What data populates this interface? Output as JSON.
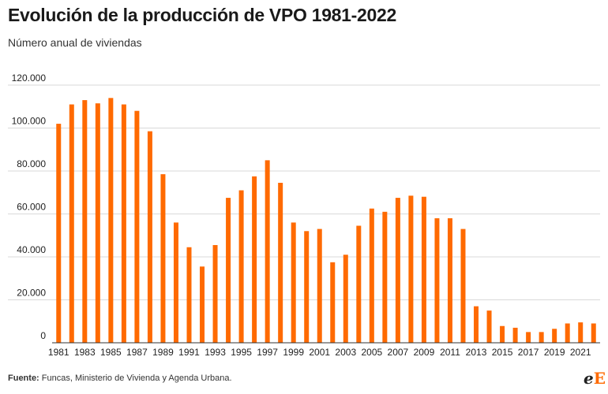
{
  "header": {
    "title": "Evolución de la producción de VPO 1981-2022",
    "subtitle": "Número anual de viviendas"
  },
  "footer": {
    "source_label": "Fuente:",
    "source_text": " Funcas, Ministerio de Vivienda y Agenda Urbana.",
    "logo_part1": "e",
    "logo_part2": "E"
  },
  "colors": {
    "bar": "#ff6a00",
    "grid": "#d9d9d9",
    "axis": "#333333",
    "text": "#222222"
  },
  "chart_data": {
    "type": "bar",
    "title": "Evolución de la producción de VPO 1981-2022",
    "subtitle": "Número anual de viviendas",
    "xlabel": "",
    "ylabel": "",
    "ylim": [
      0,
      120000
    ],
    "yticks": [
      0,
      20000,
      40000,
      60000,
      80000,
      100000,
      120000
    ],
    "ytick_labels": [
      "0",
      "20.000",
      "40.000",
      "60.000",
      "80.000",
      "100.000",
      "120.000"
    ],
    "xtick_labels": [
      "1981",
      "1983",
      "1985",
      "1987",
      "1989",
      "1991",
      "1993",
      "1995",
      "1997",
      "1999",
      "2001",
      "2003",
      "2005",
      "2007",
      "2009",
      "2011",
      "2013",
      "2015",
      "2017",
      "2019",
      "2021"
    ],
    "grid": true,
    "categories": [
      "1981",
      "1982",
      "1983",
      "1984",
      "1985",
      "1986",
      "1987",
      "1988",
      "1989",
      "1990",
      "1991",
      "1992",
      "1993",
      "1994",
      "1995",
      "1996",
      "1997",
      "1998",
      "1999",
      "2000",
      "2001",
      "2002",
      "2003",
      "2004",
      "2005",
      "2006",
      "2007",
      "2008",
      "2009",
      "2010",
      "2011",
      "2012",
      "2013",
      "2014",
      "2015",
      "2016",
      "2017",
      "2018",
      "2019",
      "2020",
      "2021",
      "2022"
    ],
    "values": [
      102000,
      111000,
      113000,
      111500,
      114000,
      111000,
      108000,
      98500,
      78500,
      56000,
      44500,
      35500,
      45500,
      67500,
      71000,
      77500,
      85000,
      74500,
      56000,
      52000,
      53000,
      37500,
      41000,
      54500,
      62500,
      61000,
      67500,
      68500,
      68000,
      58000,
      58000,
      53000,
      17000,
      15000,
      7800,
      7000,
      5000,
      5000,
      6500,
      9000,
      9500,
      9000
    ]
  }
}
